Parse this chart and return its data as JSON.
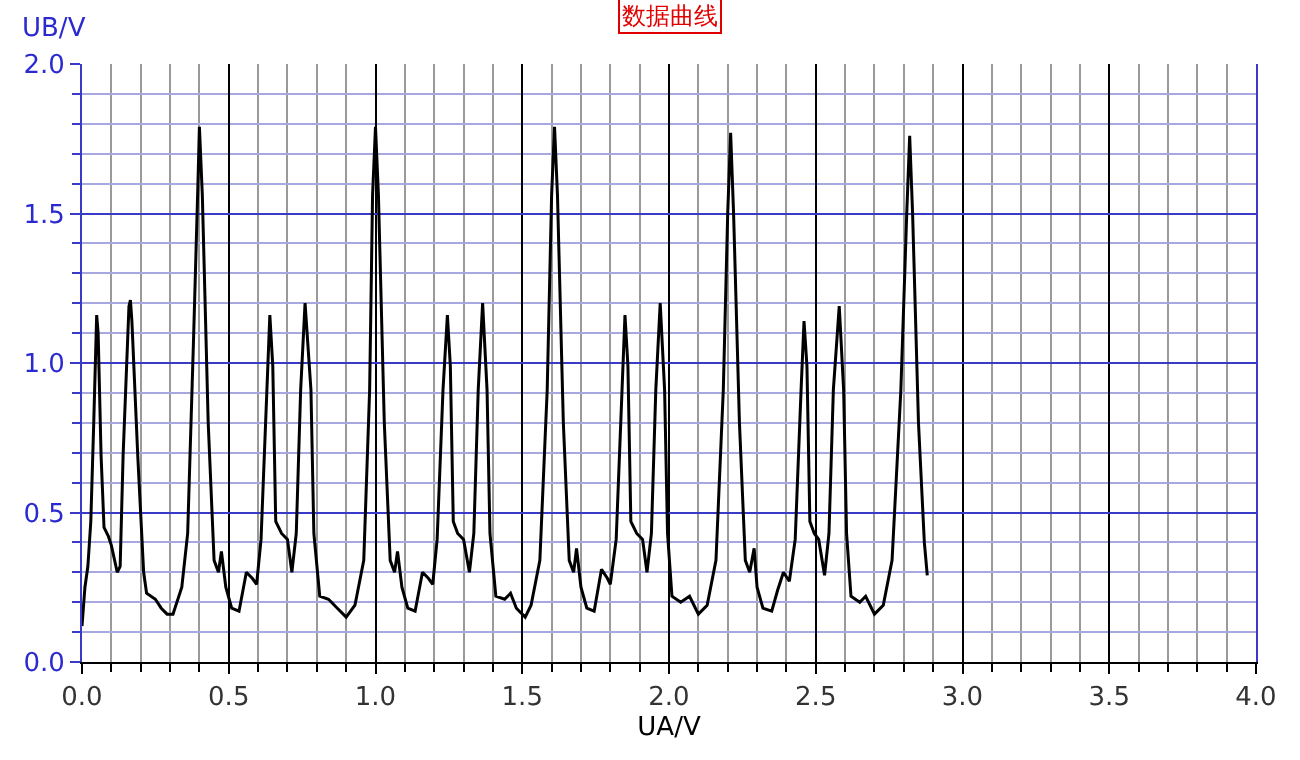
{
  "chart_data": {
    "type": "line",
    "title": "数据曲线",
    "xlabel": "UA/V",
    "ylabel": "UB/V",
    "xlim": [
      0,
      4
    ],
    "xticks": [
      {
        "value": 0,
        "label": "0.0"
      },
      {
        "value": 0.1,
        "label": null
      },
      {
        "value": 0.2,
        "label": null
      },
      {
        "value": 0.3,
        "label": null
      },
      {
        "value": 0.4,
        "label": null
      },
      0.5,
      {
        "value": 0.6,
        "label": null
      },
      {
        "value": 0.7,
        "label": null
      },
      {
        "value": 0.8,
        "label": null
      },
      {
        "value": 0.9,
        "label": null
      },
      {
        "value": 1,
        "label": "1.0"
      },
      {
        "value": 1.1,
        "label": null
      },
      {
        "value": 1.2,
        "label": null
      },
      {
        "value": 1.3,
        "label": null
      },
      {
        "value": 1.4,
        "label": null
      },
      1.5,
      {
        "value": 1.6,
        "label": null
      },
      {
        "value": 1.7,
        "label": null
      },
      {
        "value": 1.8,
        "label": null
      },
      {
        "value": 1.9,
        "label": null
      },
      {
        "value": 2,
        "label": "2.0"
      },
      {
        "value": 2.1,
        "label": null
      },
      {
        "value": 2.2,
        "label": null
      },
      {
        "value": 2.3,
        "label": null
      },
      {
        "value": 2.4,
        "label": null
      },
      2.5,
      {
        "value": 2.6,
        "label": null
      },
      {
        "value": 2.7,
        "label": null
      },
      {
        "value": 2.8,
        "label": null
      },
      {
        "value": 2.9,
        "label": null
      },
      {
        "value": 3,
        "label": "3.0"
      },
      {
        "value": 3.1,
        "label": null
      },
      {
        "value": 3.2,
        "label": null
      },
      {
        "value": 3.3,
        "label": null
      },
      {
        "value": 3.4,
        "label": null
      },
      3.5,
      {
        "value": 3.6,
        "label": null
      },
      {
        "value": 3.7,
        "label": null
      },
      {
        "value": 3.8,
        "label": null
      },
      {
        "value": 3.9,
        "label": null
      },
      {
        "value": 4,
        "label": "4.0"
      }
    ],
    "ylim": [
      0,
      2
    ],
    "yticks": [
      {
        "value": 0,
        "label": "0.0"
      },
      {
        "value": 0.1,
        "label": null
      },
      {
        "value": 0.2,
        "label": null
      },
      {
        "value": 0.3,
        "label": null
      },
      {
        "value": 0.4,
        "label": null
      },
      0.5,
      {
        "value": 0.6,
        "label": null
      },
      {
        "value": 0.7,
        "label": null
      },
      {
        "value": 0.8,
        "label": null
      },
      {
        "value": 0.9,
        "label": null
      },
      {
        "value": 1,
        "label": "1.0"
      },
      {
        "value": 1.1,
        "label": null
      },
      {
        "value": 1.2,
        "label": null
      },
      {
        "value": 1.3,
        "label": null
      },
      {
        "value": 1.4,
        "label": null
      },
      1.5,
      {
        "value": 1.6,
        "label": null
      },
      {
        "value": 1.7,
        "label": null
      },
      {
        "value": 1.8,
        "label": null
      },
      {
        "value": 1.9,
        "label": null
      },
      {
        "value": 2,
        "label": "2.0"
      }
    ],
    "grid": true,
    "marker": "none",
    "line_style": "solid",
    "series": [
      {
        "color": "#000000",
        "x": [
          0.0,
          0.01,
          0.02,
          0.03,
          0.04,
          0.05,
          0.055,
          0.065,
          0.075,
          0.09,
          0.1,
          0.12,
          0.13,
          0.14,
          0.16,
          0.165,
          0.17,
          0.19,
          0.21,
          0.22,
          0.25,
          0.27,
          0.29,
          0.31,
          0.34,
          0.36,
          0.38,
          0.395,
          0.4,
          0.41,
          0.43,
          0.45,
          0.465,
          0.475,
          0.49,
          0.51,
          0.535,
          0.56,
          0.58,
          0.595,
          0.61,
          0.63,
          0.64,
          0.65,
          0.66,
          0.68,
          0.7,
          0.715,
          0.73,
          0.745,
          0.76,
          0.78,
          0.79,
          0.81,
          0.84,
          0.87,
          0.9,
          0.93,
          0.96,
          0.98,
          0.99,
          1.0,
          1.01,
          1.03,
          1.05,
          1.065,
          1.075,
          1.09,
          1.11,
          1.135,
          1.16,
          1.18,
          1.195,
          1.21,
          1.23,
          1.245,
          1.255,
          1.265,
          1.28,
          1.3,
          1.32,
          1.335,
          1.35,
          1.365,
          1.38,
          1.39,
          1.41,
          1.44,
          1.46,
          1.48,
          1.51,
          1.53,
          1.56,
          1.585,
          1.6,
          1.61,
          1.62,
          1.64,
          1.66,
          1.675,
          1.685,
          1.7,
          1.72,
          1.745,
          1.77,
          1.79,
          1.8,
          1.82,
          1.84,
          1.85,
          1.86,
          1.87,
          1.89,
          1.91,
          1.925,
          1.94,
          1.955,
          1.97,
          1.985,
          1.995,
          2.01,
          2.04,
          2.07,
          2.1,
          2.13,
          2.16,
          2.185,
          2.2,
          2.21,
          2.22,
          2.24,
          2.26,
          2.275,
          2.29,
          2.3,
          2.32,
          2.35,
          2.37,
          2.39,
          2.41,
          2.43,
          2.45,
          2.46,
          2.47,
          2.48,
          2.495,
          2.51,
          2.53,
          2.545,
          2.56,
          2.58,
          2.595,
          2.605,
          2.62,
          2.65,
          2.67,
          2.7,
          2.73,
          2.76,
          2.79,
          2.81,
          2.82,
          2.83,
          2.85,
          2.87,
          2.88
        ],
        "values": [
          0.12,
          0.25,
          0.32,
          0.47,
          0.8,
          1.16,
          1.1,
          0.69,
          0.45,
          0.42,
          0.39,
          0.3,
          0.32,
          0.69,
          1.19,
          1.21,
          1.14,
          0.69,
          0.3,
          0.23,
          0.21,
          0.18,
          0.16,
          0.16,
          0.25,
          0.43,
          1.08,
          1.6,
          1.79,
          1.56,
          0.8,
          0.34,
          0.3,
          0.37,
          0.25,
          0.18,
          0.17,
          0.3,
          0.28,
          0.26,
          0.41,
          0.91,
          1.16,
          0.99,
          0.47,
          0.43,
          0.41,
          0.3,
          0.43,
          0.91,
          1.2,
          0.91,
          0.43,
          0.22,
          0.21,
          0.18,
          0.15,
          0.19,
          0.34,
          0.91,
          1.56,
          1.79,
          1.56,
          0.8,
          0.34,
          0.3,
          0.37,
          0.25,
          0.18,
          0.17,
          0.3,
          0.28,
          0.26,
          0.41,
          0.91,
          1.16,
          0.99,
          0.47,
          0.43,
          0.41,
          0.3,
          0.43,
          0.91,
          1.2,
          0.91,
          0.43,
          0.22,
          0.21,
          0.23,
          0.18,
          0.15,
          0.19,
          0.34,
          0.91,
          1.56,
          1.79,
          1.56,
          0.8,
          0.34,
          0.3,
          0.38,
          0.25,
          0.18,
          0.17,
          0.31,
          0.28,
          0.26,
          0.41,
          0.91,
          1.16,
          0.99,
          0.47,
          0.43,
          0.41,
          0.3,
          0.43,
          0.91,
          1.2,
          0.91,
          0.43,
          0.22,
          0.2,
          0.22,
          0.16,
          0.19,
          0.34,
          0.91,
          1.5,
          1.77,
          1.5,
          0.8,
          0.34,
          0.3,
          0.38,
          0.25,
          0.18,
          0.17,
          0.24,
          0.3,
          0.27,
          0.41,
          0.91,
          1.14,
          0.99,
          0.47,
          0.43,
          0.41,
          0.29,
          0.43,
          0.91,
          1.19,
          0.91,
          0.43,
          0.22,
          0.2,
          0.22,
          0.16,
          0.19,
          0.34,
          0.91,
          1.5,
          1.76,
          1.5,
          0.8,
          0.4,
          0.29
        ]
      }
    ]
  }
}
